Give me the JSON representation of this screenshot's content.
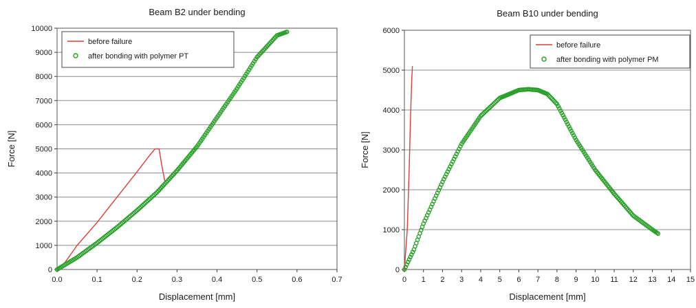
{
  "chart_data": [
    {
      "type": "line",
      "title": "Beam B2 under bending",
      "xlabel": "Displacement [mm]",
      "ylabel": "Force [N]",
      "xlim": [
        0,
        0.7
      ],
      "ylim": [
        0,
        10000
      ],
      "xticks": [
        "0.0",
        "0.1",
        "0.2",
        "0.3",
        "0.4",
        "0.5",
        "0.6",
        "0.7"
      ],
      "yticks": [
        "0",
        "1000",
        "2000",
        "3000",
        "4000",
        "5000",
        "6000",
        "7000",
        "8000",
        "9000",
        "10000"
      ],
      "grid": "horizontal",
      "legend": "top-left",
      "series": [
        {
          "name": "before failure",
          "style": "line",
          "color": "#e03a3a",
          "x": [
            0.0,
            0.02,
            0.05,
            0.1,
            0.15,
            0.2,
            0.23,
            0.245,
            0.255,
            0.262,
            0.27
          ],
          "y": [
            0,
            300,
            1000,
            1950,
            3000,
            4050,
            4700,
            5000,
            5000,
            4300,
            3600
          ]
        },
        {
          "name": "after bonding with polymer PT",
          "style": "markers",
          "color": "#2aa02a",
          "x": [
            0.0,
            0.05,
            0.1,
            0.15,
            0.2,
            0.25,
            0.3,
            0.35,
            0.4,
            0.45,
            0.5,
            0.55,
            0.575
          ],
          "y": [
            0,
            500,
            1100,
            1750,
            2450,
            3200,
            4100,
            5100,
            6300,
            7500,
            8800,
            9700,
            9850
          ]
        }
      ]
    },
    {
      "type": "line",
      "title": "Beam B10 under bending",
      "xlabel": "Displacement [mm]",
      "ylabel": "Force [N]",
      "xlim": [
        0,
        15
      ],
      "ylim": [
        0,
        6000
      ],
      "xticks": [
        "0",
        "1",
        "2",
        "3",
        "4",
        "5",
        "6",
        "7",
        "8",
        "9",
        "10",
        "11",
        "12",
        "13",
        "14",
        "15"
      ],
      "yticks": [
        "0",
        "1000",
        "2000",
        "3000",
        "4000",
        "5000",
        "6000"
      ],
      "grid": "horizontal",
      "legend": "top-right",
      "series": [
        {
          "name": "before failure",
          "style": "line",
          "color": "#e03a3a",
          "x": [
            0.0,
            0.15,
            0.25,
            0.32,
            0.38,
            0.42
          ],
          "y": [
            0,
            1000,
            2500,
            3800,
            4700,
            5100
          ]
        },
        {
          "name": "after bonding with polymer PM",
          "style": "markers",
          "color": "#2aa02a",
          "x": [
            0.0,
            0.5,
            1,
            2,
            3,
            4,
            5,
            6,
            6.5,
            7,
            7.5,
            8,
            8.5,
            9,
            10,
            11,
            12,
            13,
            13.3
          ],
          "y": [
            0,
            500,
            1150,
            2200,
            3150,
            3850,
            4300,
            4500,
            4520,
            4500,
            4400,
            4150,
            3700,
            3250,
            2500,
            1900,
            1350,
            1000,
            900
          ]
        }
      ]
    }
  ]
}
